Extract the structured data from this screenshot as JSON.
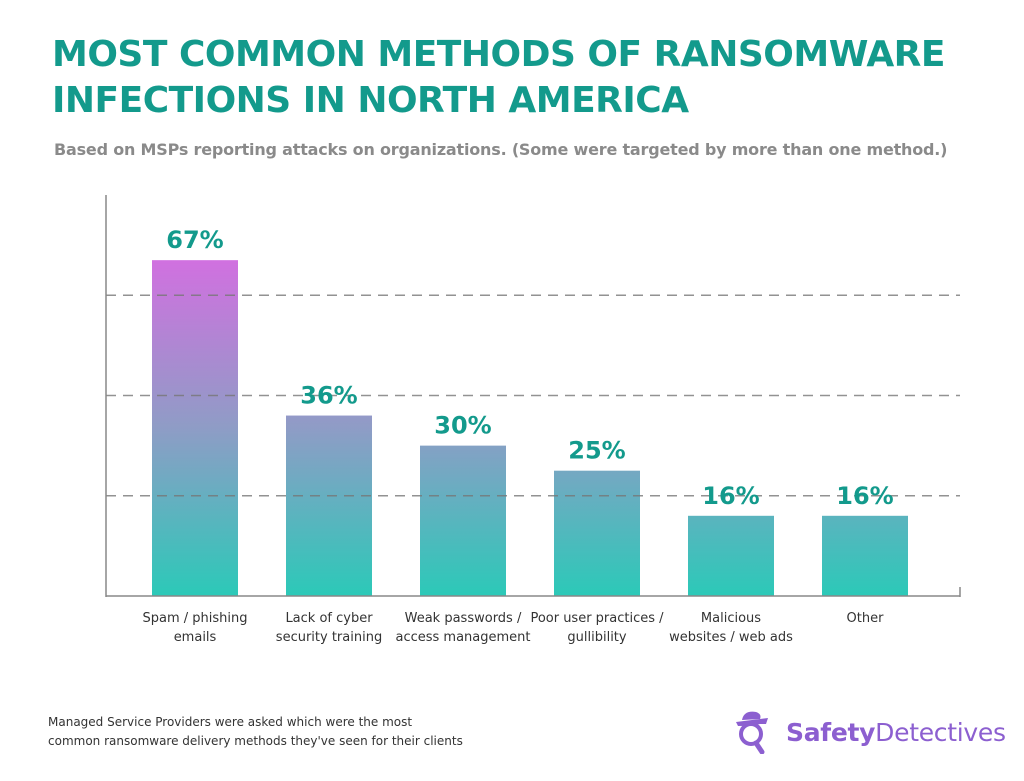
{
  "chart_data": {
    "type": "bar",
    "title": "MOST COMMON METHODS OF RANSOMWARE INFECTIONS IN NORTH AMERICA",
    "subtitle": "Based on MSPs reporting attacks on organizations. (Some were targeted by more than one method.)",
    "categories": [
      [
        "Spam / phishing",
        "emails"
      ],
      [
        "Lack of cyber",
        "security training"
      ],
      [
        "Weak passwords /",
        "access management"
      ],
      [
        "Poor user practices /",
        "gullibility"
      ],
      [
        "Malicious",
        "websites / web ads"
      ],
      [
        "Other"
      ]
    ],
    "values": [
      67,
      36,
      30,
      25,
      16,
      16
    ],
    "data_labels": [
      "67%",
      "36%",
      "30%",
      "25%",
      "16%",
      "16%"
    ],
    "xlabel": "",
    "ylabel": "",
    "ylim": [
      0,
      80
    ],
    "gridlines": [
      20,
      40,
      60
    ],
    "grid": "horizontal dashed",
    "colors": {
      "gradient_top": "#d170e0",
      "gradient_bottom": "#2cc9b8",
      "label": "#139a8c"
    }
  },
  "footnote": "Managed Service Providers were asked which were the most common ransomware delivery methods they've seen for their clients",
  "logo": {
    "brand_bold": "Safety",
    "brand_light": "Detectives",
    "color": "#8c5fd0"
  }
}
